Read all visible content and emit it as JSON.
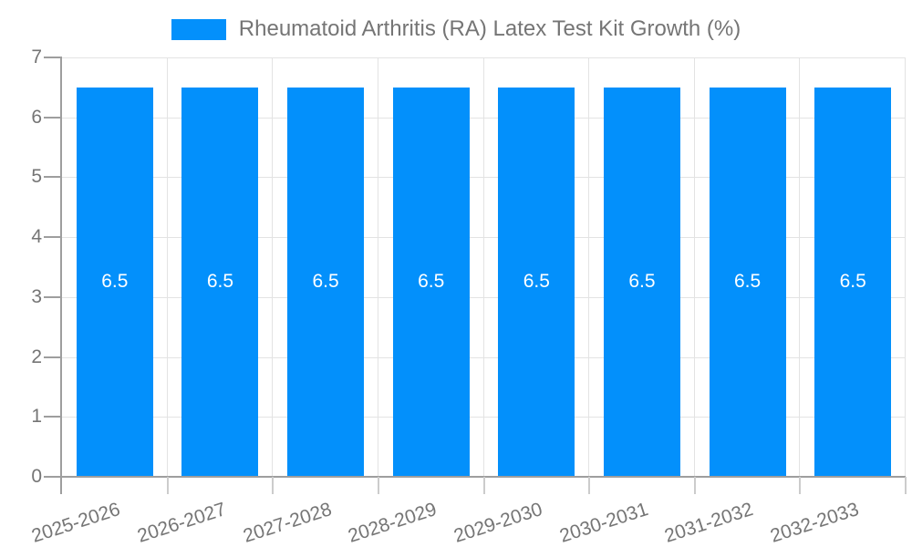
{
  "chart_data": {
    "type": "bar",
    "title": "Rheumatoid Arthritis (RA) Latex Test Kit Growth (%)",
    "categories": [
      "2025-2026",
      "2026-2027",
      "2027-2028",
      "2028-2029",
      "2029-2030",
      "2030-2031",
      "2031-2032",
      "2032-2033"
    ],
    "values": [
      6.5,
      6.5,
      6.5,
      6.5,
      6.5,
      6.5,
      6.5,
      6.5
    ],
    "value_labels": [
      "6.5",
      "6.5",
      "6.5",
      "6.5",
      "6.5",
      "6.5",
      "6.5",
      "6.5"
    ],
    "xlabel": "",
    "ylabel": "",
    "ylim": [
      0,
      7
    ],
    "yticks": [
      0,
      1,
      2,
      3,
      4,
      5,
      6,
      7
    ],
    "grid": true,
    "legend_position": "top",
    "colors": {
      "bar": "#0390fb",
      "grid": "#e3e3e3",
      "axis": "#9e9e9e",
      "tick_minor": "#cccccc",
      "label": "#757575",
      "value_label": "#ffffff",
      "background": "#ffffff"
    }
  }
}
